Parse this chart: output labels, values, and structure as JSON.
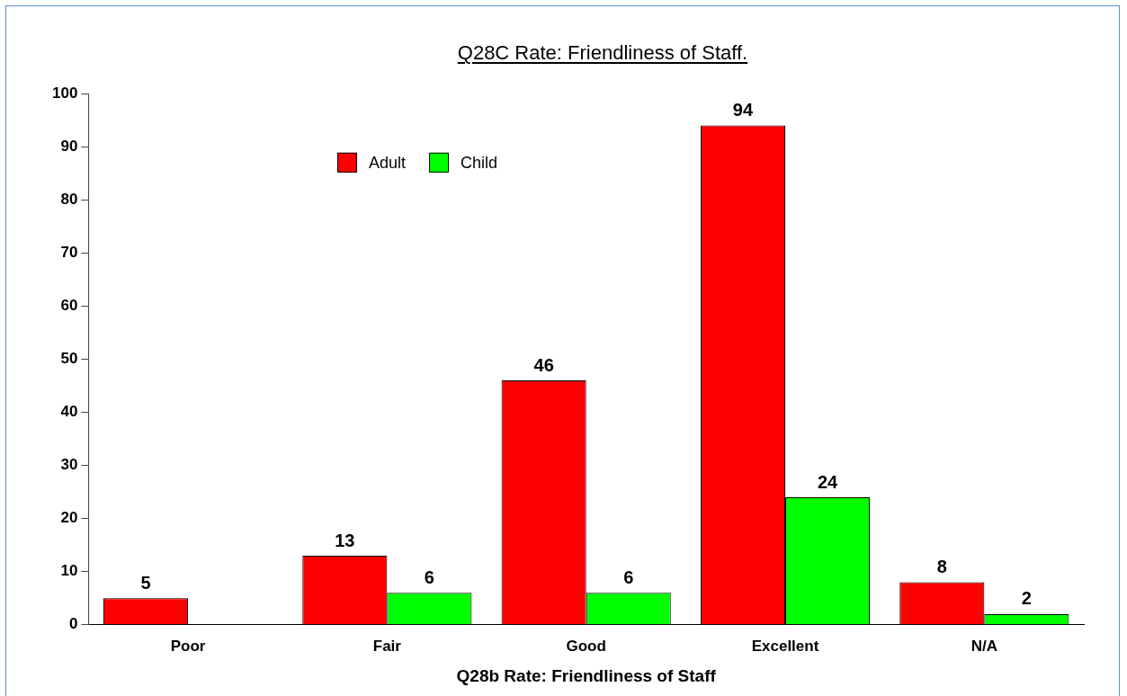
{
  "chart_data": {
    "type": "bar",
    "title": "Q28C Rate: Friendliness of Staff.",
    "xlabel": "Q28b Rate: Friendliness of Staff",
    "categories": [
      "Poor",
      "Fair",
      "Good",
      "Excellent",
      "N/A"
    ],
    "series": [
      {
        "name": "Adult",
        "color": "#ff0000",
        "values": [
          5,
          13,
          46,
          94,
          8
        ]
      },
      {
        "name": "Child",
        "color": "#00ff00",
        "values": [
          null,
          6,
          6,
          24,
          2
        ]
      }
    ],
    "ylim": [
      0,
      100
    ],
    "yticks": [
      0,
      10,
      20,
      30,
      40,
      50,
      60,
      70,
      80,
      90,
      100
    ],
    "grid": false,
    "legend": "top left",
    "data_labels": true
  }
}
